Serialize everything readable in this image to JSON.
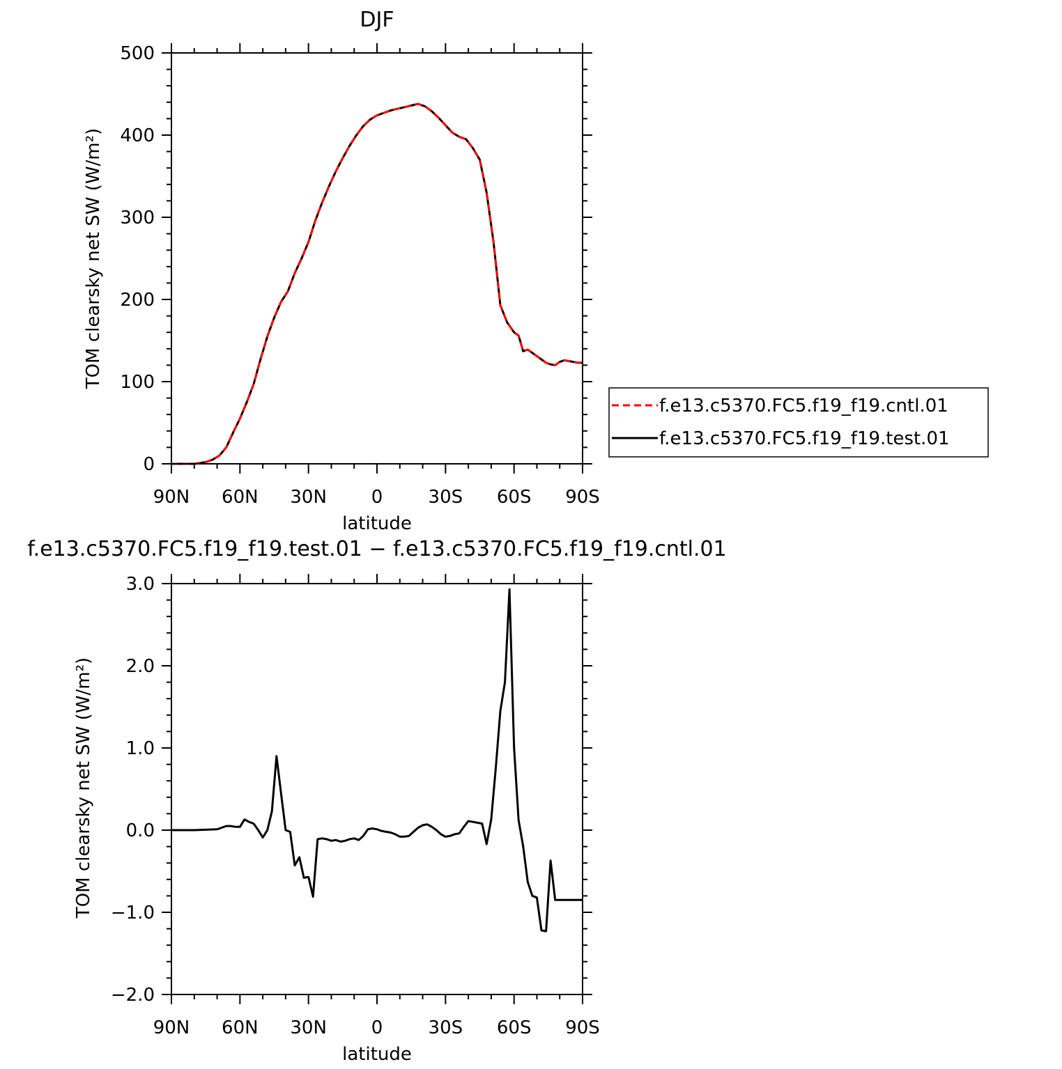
{
  "chart_data": [
    {
      "type": "line",
      "title": "DJF",
      "xlabel": "latitude",
      "ylabel": "TOM clearsky net SW (W/m²)",
      "ylim": [
        0,
        500
      ],
      "yticks": [
        0,
        100,
        200,
        300,
        400,
        500
      ],
      "ytick_labels": [
        "0",
        "100",
        "200",
        "300",
        "400",
        "500"
      ],
      "xlim": [
        90,
        -90
      ],
      "xticks": [
        90,
        60,
        30,
        0,
        -30,
        -60,
        -90
      ],
      "xtick_labels": [
        "90N",
        "60N",
        "30N",
        "0",
        "30S",
        "60S",
        "90S"
      ],
      "grid": false,
      "legend": "right",
      "x": [
        90,
        85,
        80,
        75,
        72,
        69,
        66,
        63,
        60,
        57,
        54,
        51,
        48,
        45,
        42,
        39,
        36,
        33,
        30,
        27,
        24,
        21,
        18,
        15,
        12,
        9,
        6,
        3,
        0,
        -3,
        -6,
        -9,
        -12,
        -15,
        -18,
        -21,
        -24,
        -27,
        -30,
        -33,
        -36,
        -39,
        -42,
        -45,
        -48,
        -51,
        -54,
        -57,
        -60,
        -62,
        -64,
        -66,
        -68,
        -70,
        -72,
        -74,
        -76,
        -78,
        -80,
        -82,
        -84,
        -86,
        -88,
        -90
      ],
      "series": [
        {
          "name": "f.e13.c5370.FC5.f19_f19.cntl.01",
          "color": "#ff0000",
          "dash": "dashed",
          "values": [
            0,
            0,
            0,
            2,
            5,
            10,
            20,
            38,
            55,
            75,
            97,
            127,
            155,
            178,
            197,
            210,
            232,
            250,
            270,
            296,
            318,
            338,
            356,
            372,
            387,
            400,
            411,
            419,
            424,
            427,
            430,
            432,
            434,
            436,
            438,
            435,
            429,
            421,
            412,
            403,
            398,
            395,
            384,
            370,
            330,
            270,
            193,
            172,
            160,
            156,
            137,
            139,
            135,
            131,
            127,
            123,
            121,
            120,
            124,
            126,
            125,
            124,
            123,
            123
          ]
        },
        {
          "name": "f.e13.c5370.FC5.f19_f19.test.01",
          "color": "#000000",
          "dash": "solid",
          "values": [
            0,
            0,
            0,
            2,
            5,
            10,
            20,
            38,
            55,
            75,
            97,
            127,
            155,
            178,
            197,
            210,
            232,
            250,
            270,
            296,
            318,
            338,
            356,
            372,
            387,
            400,
            411,
            419,
            424,
            427,
            430,
            432,
            434,
            436,
            438,
            435,
            429,
            421,
            412,
            403,
            398,
            395,
            384,
            370,
            330,
            270,
            193,
            172,
            160,
            156,
            137,
            139,
            135,
            131,
            127,
            123,
            121,
            120,
            124,
            126,
            125,
            124,
            123,
            123
          ]
        }
      ]
    },
    {
      "type": "line",
      "title": "f.e13.c5370.FC5.f19_f19.test.01 − f.e13.c5370.FC5.f19_f19.cntl.01",
      "xlabel": "latitude",
      "ylabel": "TOM clearsky net SW (W/m²)",
      "ylim": [
        -2.0,
        3.0
      ],
      "yticks": [
        -2.0,
        -1.0,
        0.0,
        1.0,
        2.0,
        3.0
      ],
      "ytick_labels": [
        "−2.0",
        "−1.0",
        "0.0",
        "1.0",
        "2.0",
        "3.0"
      ],
      "xlim": [
        90,
        -90
      ],
      "xticks": [
        90,
        60,
        30,
        0,
        -30,
        -60,
        -90
      ],
      "xtick_labels": [
        "90N",
        "60N",
        "30N",
        "0",
        "30S",
        "60S",
        "90S"
      ],
      "grid": false,
      "x": [
        90,
        80,
        70,
        68,
        66,
        64,
        62,
        60,
        58,
        56,
        54,
        52,
        50,
        48,
        46,
        44,
        42,
        40,
        38,
        36,
        34,
        32,
        30,
        28,
        26,
        24,
        22,
        20,
        18,
        16,
        14,
        12,
        10,
        8,
        6,
        4,
        2,
        0,
        -2,
        -4,
        -6,
        -8,
        -10,
        -12,
        -14,
        -16,
        -18,
        -20,
        -22,
        -24,
        -26,
        -28,
        -30,
        -32,
        -34,
        -36,
        -38,
        -40,
        -42,
        -44,
        -46,
        -48,
        -50,
        -52,
        -54,
        -56,
        -58,
        -60,
        -62,
        -64,
        -66,
        -68,
        -70,
        -72,
        -74,
        -76,
        -78,
        -80,
        -82,
        -84,
        -86,
        -88,
        -90
      ],
      "series": [
        {
          "color": "#000000",
          "dash": "solid",
          "values": [
            0,
            0,
            0.01,
            0.03,
            0.05,
            0.05,
            0.04,
            0.04,
            0.13,
            0.1,
            0.08,
            0.0,
            -0.09,
            0.0,
            0.23,
            0.9,
            0.45,
            0.0,
            -0.02,
            -0.43,
            -0.33,
            -0.58,
            -0.57,
            -0.81,
            -0.11,
            -0.1,
            -0.11,
            -0.13,
            -0.12,
            -0.14,
            -0.13,
            -0.11,
            -0.1,
            -0.12,
            -0.07,
            0.01,
            0.02,
            0.01,
            -0.01,
            -0.02,
            -0.03,
            -0.05,
            -0.08,
            -0.08,
            -0.07,
            -0.02,
            0.03,
            0.06,
            0.07,
            0.04,
            0.0,
            -0.05,
            -0.08,
            -0.07,
            -0.05,
            -0.04,
            0.04,
            0.11,
            0.1,
            0.09,
            0.08,
            -0.17,
            0.13,
            0.75,
            1.45,
            1.8,
            2.93,
            1.0,
            0.12,
            -0.2,
            -0.63,
            -0.8,
            -0.82,
            -1.22,
            -1.23,
            -0.37,
            -0.85,
            -0.85,
            -0.85,
            -0.85,
            -0.85,
            -0.85,
            -0.85
          ]
        }
      ]
    }
  ]
}
